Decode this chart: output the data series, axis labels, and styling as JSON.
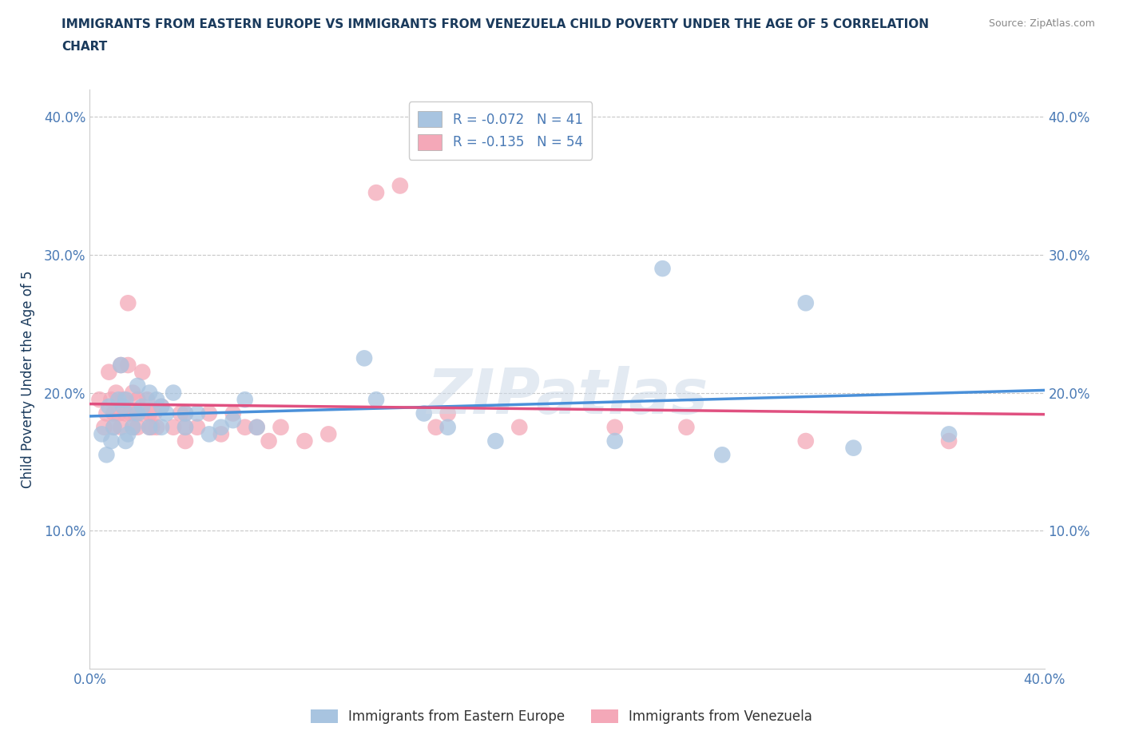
{
  "title": "IMMIGRANTS FROM EASTERN EUROPE VS IMMIGRANTS FROM VENEZUELA CHILD POVERTY UNDER THE AGE OF 5 CORRELATION\nCHART",
  "ylabel": "Child Poverty Under the Age of 5",
  "source_text": "Source: ZipAtlas.com",
  "xlim": [
    0.0,
    0.4
  ],
  "ylim": [
    0.0,
    0.42
  ],
  "ytick_values": [
    0.0,
    0.1,
    0.2,
    0.3,
    0.4
  ],
  "xtick_values": [
    0.0,
    0.1,
    0.2,
    0.3,
    0.4
  ],
  "watermark": "ZIPatlas",
  "legend_r_blue": "-0.072",
  "legend_n_blue": "41",
  "legend_r_pink": "-0.135",
  "legend_n_pink": "54",
  "blue_color": "#a8c4e0",
  "pink_color": "#f4a8b8",
  "line_blue": "#4a90d9",
  "line_pink": "#e05080",
  "title_color": "#1a3a5c",
  "axis_color": "#4a7ab5",
  "blue_scatter": [
    [
      0.005,
      0.17
    ],
    [
      0.007,
      0.155
    ],
    [
      0.008,
      0.19
    ],
    [
      0.009,
      0.165
    ],
    [
      0.01,
      0.175
    ],
    [
      0.012,
      0.195
    ],
    [
      0.013,
      0.22
    ],
    [
      0.014,
      0.19
    ],
    [
      0.015,
      0.165
    ],
    [
      0.015,
      0.195
    ],
    [
      0.016,
      0.17
    ],
    [
      0.018,
      0.175
    ],
    [
      0.02,
      0.185
    ],
    [
      0.02,
      0.205
    ],
    [
      0.022,
      0.19
    ],
    [
      0.025,
      0.2
    ],
    [
      0.025,
      0.175
    ],
    [
      0.028,
      0.195
    ],
    [
      0.03,
      0.19
    ],
    [
      0.03,
      0.175
    ],
    [
      0.032,
      0.185
    ],
    [
      0.035,
      0.2
    ],
    [
      0.04,
      0.185
    ],
    [
      0.04,
      0.175
    ],
    [
      0.045,
      0.185
    ],
    [
      0.05,
      0.17
    ],
    [
      0.055,
      0.175
    ],
    [
      0.06,
      0.18
    ],
    [
      0.065,
      0.195
    ],
    [
      0.07,
      0.175
    ],
    [
      0.115,
      0.225
    ],
    [
      0.12,
      0.195
    ],
    [
      0.14,
      0.185
    ],
    [
      0.15,
      0.175
    ],
    [
      0.17,
      0.165
    ],
    [
      0.22,
      0.165
    ],
    [
      0.24,
      0.29
    ],
    [
      0.265,
      0.155
    ],
    [
      0.3,
      0.265
    ],
    [
      0.32,
      0.16
    ],
    [
      0.36,
      0.17
    ]
  ],
  "pink_scatter": [
    [
      0.004,
      0.195
    ],
    [
      0.006,
      0.175
    ],
    [
      0.007,
      0.185
    ],
    [
      0.008,
      0.215
    ],
    [
      0.009,
      0.195
    ],
    [
      0.01,
      0.185
    ],
    [
      0.01,
      0.175
    ],
    [
      0.011,
      0.2
    ],
    [
      0.012,
      0.185
    ],
    [
      0.013,
      0.175
    ],
    [
      0.013,
      0.22
    ],
    [
      0.014,
      0.195
    ],
    [
      0.015,
      0.185
    ],
    [
      0.016,
      0.265
    ],
    [
      0.016,
      0.22
    ],
    [
      0.017,
      0.185
    ],
    [
      0.018,
      0.2
    ],
    [
      0.018,
      0.175
    ],
    [
      0.019,
      0.185
    ],
    [
      0.02,
      0.175
    ],
    [
      0.02,
      0.195
    ],
    [
      0.022,
      0.185
    ],
    [
      0.022,
      0.215
    ],
    [
      0.024,
      0.195
    ],
    [
      0.025,
      0.175
    ],
    [
      0.025,
      0.185
    ],
    [
      0.026,
      0.175
    ],
    [
      0.027,
      0.185
    ],
    [
      0.028,
      0.175
    ],
    [
      0.03,
      0.19
    ],
    [
      0.035,
      0.175
    ],
    [
      0.038,
      0.185
    ],
    [
      0.04,
      0.175
    ],
    [
      0.04,
      0.185
    ],
    [
      0.04,
      0.165
    ],
    [
      0.045,
      0.175
    ],
    [
      0.05,
      0.185
    ],
    [
      0.055,
      0.17
    ],
    [
      0.06,
      0.185
    ],
    [
      0.065,
      0.175
    ],
    [
      0.07,
      0.175
    ],
    [
      0.075,
      0.165
    ],
    [
      0.08,
      0.175
    ],
    [
      0.09,
      0.165
    ],
    [
      0.1,
      0.17
    ],
    [
      0.12,
      0.345
    ],
    [
      0.13,
      0.35
    ],
    [
      0.145,
      0.175
    ],
    [
      0.15,
      0.185
    ],
    [
      0.18,
      0.175
    ],
    [
      0.22,
      0.175
    ],
    [
      0.25,
      0.175
    ],
    [
      0.3,
      0.165
    ],
    [
      0.36,
      0.165
    ]
  ]
}
